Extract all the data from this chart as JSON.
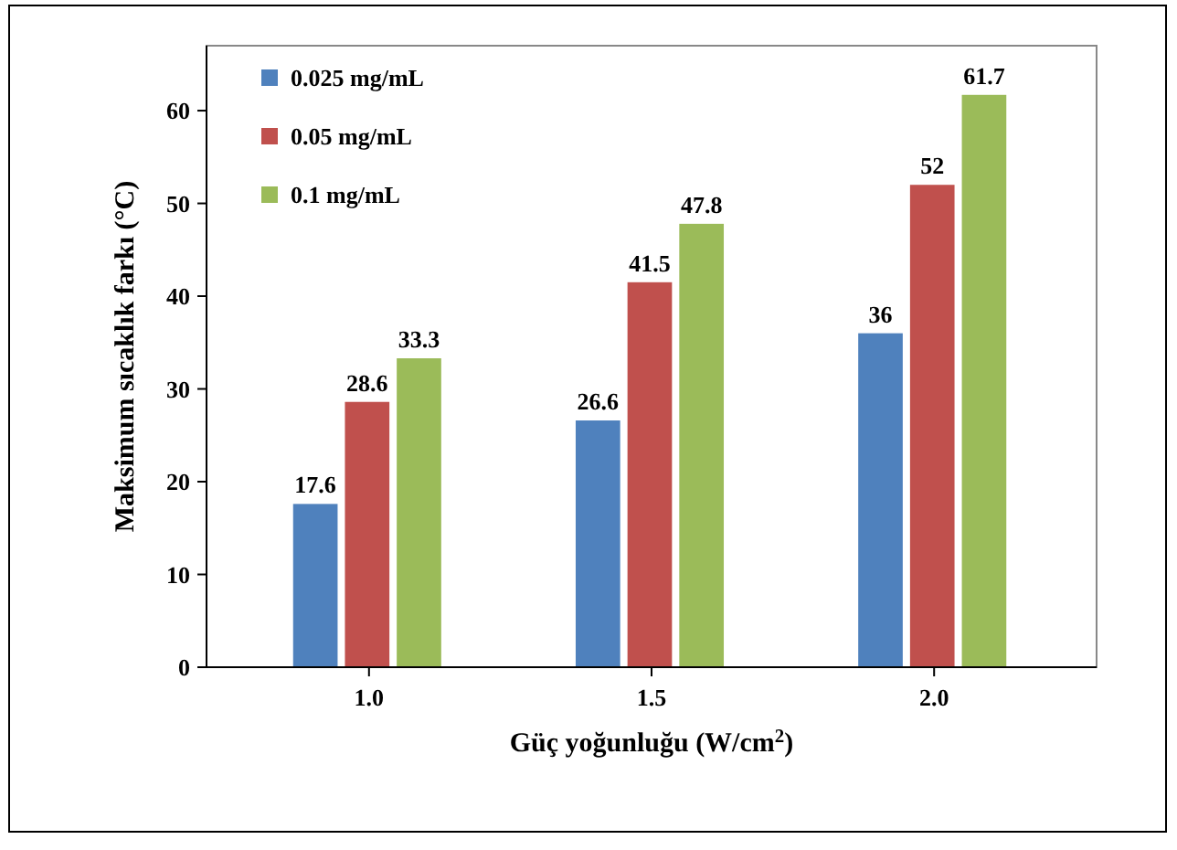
{
  "chart_data": {
    "type": "bar",
    "xlabel": "Güç yoğunluğu (W/cm$^{2}$)",
    "ylabel": "Maksimum sıcaklık farkı (°C)",
    "categories": [
      "1.0",
      "1.5",
      "2.0"
    ],
    "series": [
      {
        "name": "0.025 mg/mL",
        "color": "#4f81bd",
        "values": [
          17.6,
          26.6,
          36
        ]
      },
      {
        "name": "0.05 mg/mL",
        "color": "#c0504d",
        "values": [
          28.6,
          41.5,
          52
        ]
      },
      {
        "name": "0.1 mg/mL",
        "color": "#9bbb59",
        "values": [
          33.3,
          47.8,
          61.7
        ]
      }
    ],
    "ylim": [
      0,
      67
    ],
    "yticks": [
      0,
      10,
      20,
      30,
      40,
      50,
      60
    ],
    "data_labels": true,
    "legend": "top left",
    "grid": false
  }
}
